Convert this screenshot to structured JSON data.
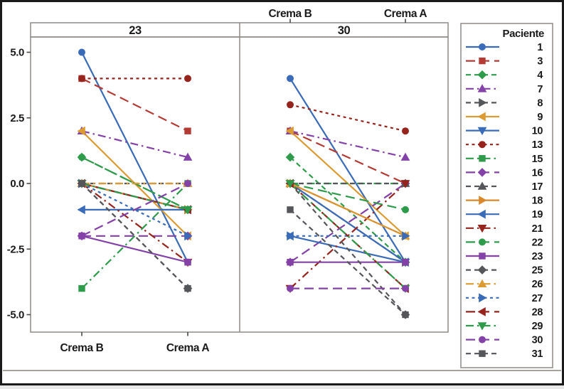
{
  "figure": {
    "description": "Paired interaction plot of patient scores for Crema B vs Crema A in two panels",
    "footer_rule": true
  },
  "chart_data": {
    "type": "line",
    "subtype": "paired-interaction-plot",
    "panels": [
      "23",
      "30"
    ],
    "x_categories": [
      "Crema B",
      "Crema A"
    ],
    "yticks": [
      5.0,
      2.5,
      0.0,
      -2.5,
      -5.0
    ],
    "ytick_labels": [
      "5.0",
      "2.5",
      "0.0",
      "-2.5",
      "-5.0"
    ],
    "ylim": [
      -5.7,
      5.6
    ],
    "grid": false,
    "legend_title": "Paciente",
    "legend_position": "right",
    "colors": {
      "blue": "#3A6BB8",
      "red": "#B43A34",
      "dark_red": "#96231C",
      "green": "#2E9B4B",
      "purple": "#8442A8",
      "gray": "#55565A",
      "orange": "#DC9B32",
      "border": "#8e8a85",
      "frame": "#1a1a1a"
    },
    "series": [
      {
        "name": "1",
        "color": "#3A6BB8",
        "marker": "circle",
        "dash": "solid",
        "values_23": [
          5,
          -3
        ],
        "values_30": [
          4,
          -3
        ]
      },
      {
        "name": "3",
        "color": "#B43A34",
        "marker": "square",
        "dash": "longdash",
        "values_23": [
          4,
          2
        ],
        "values_30": [
          2,
          0
        ]
      },
      {
        "name": "4",
        "color": "#2E9B4B",
        "marker": "diamond",
        "dash": "dash",
        "values_23": [
          1,
          -1
        ],
        "values_30": [
          1,
          -3
        ]
      },
      {
        "name": "7",
        "color": "#8442A8",
        "marker": "triangle-up",
        "dash": "dashdot",
        "values_23": [
          2,
          1
        ],
        "values_30": [
          2,
          1
        ]
      },
      {
        "name": "8",
        "color": "#55565A",
        "marker": "triangle-right",
        "dash": "dash",
        "values_23": [
          0,
          -1
        ],
        "values_30": [
          0,
          -3
        ]
      },
      {
        "name": "9",
        "color": "#DC9B32",
        "marker": "triangle-left",
        "dash": "solid",
        "values_23": [
          2,
          -2
        ],
        "values_30": [
          2,
          -2
        ]
      },
      {
        "name": "10",
        "color": "#3A6BB8",
        "marker": "triangle-down",
        "dash": "solid",
        "values_23": [
          0,
          -1
        ],
        "values_30": [
          0,
          -3
        ]
      },
      {
        "name": "13",
        "color": "#96231C",
        "marker": "circle",
        "dash": "shortdash",
        "values_23": [
          4,
          4
        ],
        "values_30": [
          3,
          2
        ]
      },
      {
        "name": "15",
        "color": "#2E9B4B",
        "marker": "square",
        "dash": "dashdot",
        "values_23": [
          -4,
          0
        ],
        "values_30": [
          0,
          0
        ]
      },
      {
        "name": "16",
        "color": "#8442A8",
        "marker": "diamond",
        "dash": "longdash",
        "values_23": [
          -2,
          -2
        ],
        "values_30": [
          -3,
          0
        ]
      },
      {
        "name": "17",
        "color": "#55565A",
        "marker": "triangle-up",
        "dash": "dash",
        "values_23": [
          0,
          0
        ],
        "values_30": [
          0,
          0
        ]
      },
      {
        "name": "18",
        "color": "#D8882B",
        "marker": "triangle-right",
        "dash": "solid",
        "values_23": [
          0,
          -1
        ],
        "values_30": [
          0,
          -2
        ]
      },
      {
        "name": "19",
        "color": "#3A6BB8",
        "marker": "triangle-left",
        "dash": "solid",
        "values_23": [
          -1,
          -1
        ],
        "values_30": [
          -2,
          -3
        ]
      },
      {
        "name": "21",
        "color": "#96231C",
        "marker": "triangle-down",
        "dash": "dashdot",
        "values_23": [
          0,
          -3
        ],
        "values_30": [
          -4,
          0
        ]
      },
      {
        "name": "22",
        "color": "#2E9B4B",
        "marker": "circle",
        "dash": "longdash",
        "values_23": [
          1,
          -1
        ],
        "values_30": [
          0,
          -1
        ]
      },
      {
        "name": "23",
        "color": "#8442A8",
        "marker": "square",
        "dash": "solid",
        "values_23": [
          -2,
          -3
        ],
        "values_30": [
          -3,
          -3
        ]
      },
      {
        "name": "25",
        "color": "#55565A",
        "marker": "diamond",
        "dash": "dash",
        "values_23": [
          0,
          -4
        ],
        "values_30": [
          0,
          -5
        ]
      },
      {
        "name": "26",
        "color": "#DC9B32",
        "marker": "triangle-up",
        "dash": "dashdot",
        "values_23": [
          0,
          0
        ],
        "values_30": [
          0,
          -2
        ]
      },
      {
        "name": "27",
        "color": "#3A6BB8",
        "marker": "triangle-right",
        "dash": "shortdash",
        "values_23": [
          0,
          -2
        ],
        "values_30": [
          -2,
          -2
        ]
      },
      {
        "name": "28",
        "color": "#96231C",
        "marker": "triangle-left",
        "dash": "longdash",
        "values_23": [
          0,
          -1
        ],
        "values_30": [
          0,
          -4
        ]
      },
      {
        "name": "29",
        "color": "#2E9B4B",
        "marker": "triangle-down",
        "dash": "dashdot",
        "values_23": [
          0,
          -1
        ],
        "values_30": [
          0,
          -4
        ]
      },
      {
        "name": "30",
        "color": "#8442A8",
        "marker": "circle",
        "dash": "longdash",
        "values_23": [
          -2,
          0
        ],
        "values_30": [
          -4,
          -4
        ]
      },
      {
        "name": "31",
        "color": "#55565A",
        "marker": "square",
        "dash": "dash",
        "values_23": [
          0,
          -4
        ],
        "values_30": [
          -1,
          -5
        ]
      }
    ]
  }
}
